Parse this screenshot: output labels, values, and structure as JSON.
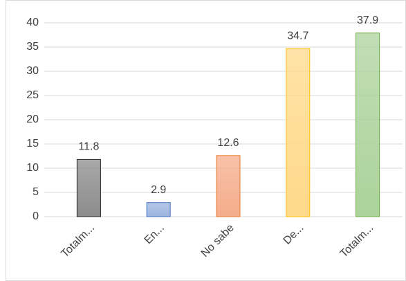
{
  "chart_data": {
    "type": "bar",
    "categories": [
      "Totalm...",
      "En...",
      "No sabe",
      "De...",
      "Totalm..."
    ],
    "values": [
      11.8,
      2.9,
      12.6,
      34.7,
      37.9
    ],
    "colors": [
      "#8c8c8c",
      "#9db4e0",
      "#f5ad8c",
      "#ffd98a",
      "#acd39b"
    ],
    "edge_colors": [
      "#262626",
      "#4472c4",
      "#ed7d31",
      "#ffc000",
      "#70ad47"
    ],
    "ylim": [
      0,
      40
    ],
    "yticks": [
      0,
      5,
      10,
      15,
      20,
      25,
      30,
      35,
      40
    ],
    "grid": true
  }
}
